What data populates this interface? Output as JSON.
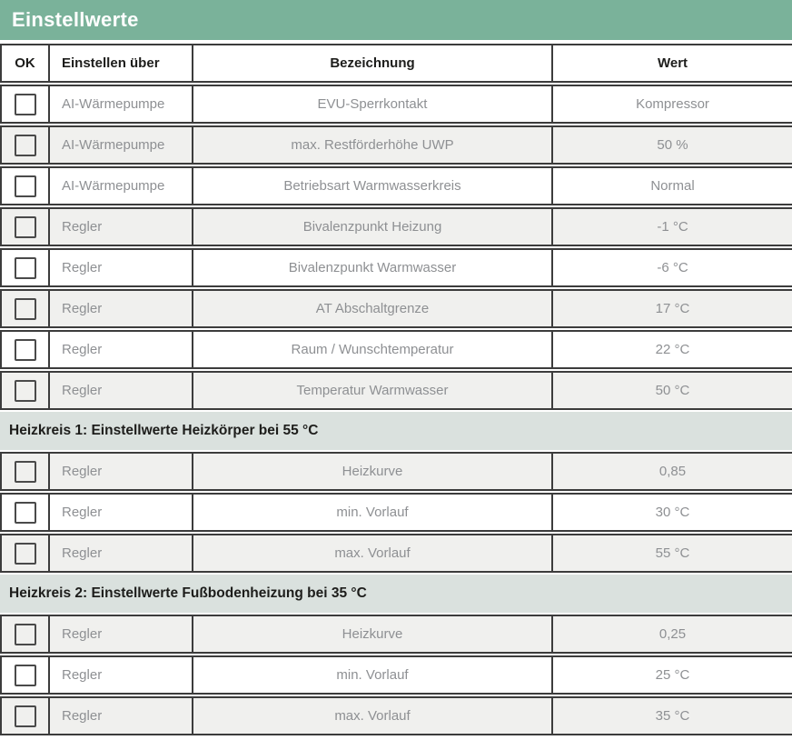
{
  "title": "Einstellwerte",
  "columns": [
    "OK",
    "Einstellen über",
    "Bezeichnung",
    "Wert"
  ],
  "sections": [
    {
      "header": "",
      "rows": [
        {
          "ok": false,
          "source": "AI-Wärmepumpe",
          "name": "EVU-Sperrkontakt",
          "value": "Kompressor"
        },
        {
          "ok": false,
          "source": "AI-Wärmepumpe",
          "name": "max. Restförderhöhe UWP",
          "value": "50 %"
        },
        {
          "ok": false,
          "source": "AI-Wärmepumpe",
          "name": "Betriebsart Warmwasserkreis",
          "value": "Normal"
        },
        {
          "ok": false,
          "source": "Regler",
          "name": "Bivalenzpunkt Heizung",
          "value": "-1 °C"
        },
        {
          "ok": false,
          "source": "Regler",
          "name": "Bivalenzpunkt Warmwasser",
          "value": "-6 °C"
        },
        {
          "ok": false,
          "source": "Regler",
          "name": "AT Abschaltgrenze",
          "value": "17 °C"
        },
        {
          "ok": false,
          "source": "Regler",
          "name": "Raum / Wunschtemperatur",
          "value": "22 °C"
        },
        {
          "ok": false,
          "source": "Regler",
          "name": "Temperatur Warmwasser",
          "value": "50 °C"
        }
      ]
    },
    {
      "header": "Heizkreis 1: Einstellwerte Heizkörper bei 55 °C",
      "rows": [
        {
          "ok": false,
          "source": "Regler",
          "name": "Heizkurve",
          "value": "0,85"
        },
        {
          "ok": false,
          "source": "Regler",
          "name": "min. Vorlauf",
          "value": "30 °C"
        },
        {
          "ok": false,
          "source": "Regler",
          "name": "max. Vorlauf",
          "value": "55 °C"
        }
      ]
    },
    {
      "header": "Heizkreis 2: Einstellwerte Fußbodenheizung bei 35 °C",
      "rows": [
        {
          "ok": false,
          "source": "Regler",
          "name": "Heizkurve",
          "value": "0,25"
        },
        {
          "ok": false,
          "source": "Regler",
          "name": "min. Vorlauf",
          "value": "25 °C"
        },
        {
          "ok": false,
          "source": "Regler",
          "name": "max. Vorlauf",
          "value": "35 °C"
        }
      ]
    }
  ],
  "colors": {
    "header_green": "#7ab29a",
    "section_bg": "#dae1de",
    "row_alt_bg": "#f0f0ee",
    "border": "#3c3c3c",
    "body_text": "#8e9093",
    "heading_text": "#1d1d1b"
  }
}
